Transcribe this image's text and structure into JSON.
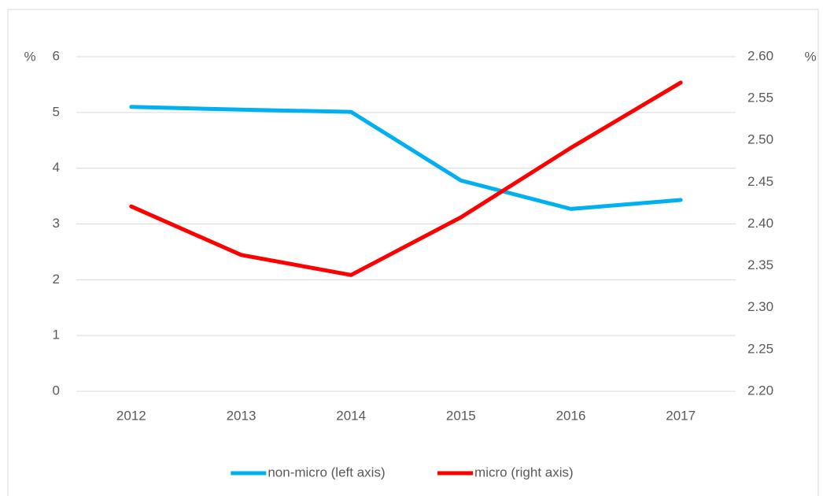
{
  "chart_data": {
    "type": "line",
    "categories": [
      "2012",
      "2013",
      "2014",
      "2015",
      "2016",
      "2017"
    ],
    "series": [
      {
        "name": "non-micro (left axis)",
        "color": "#00b0f0",
        "values": [
          5.1,
          5.05,
          5.01,
          3.78,
          3.27,
          3.43
        ]
      },
      {
        "name": "micro (right axis)",
        "color": "#ff0000",
        "axis": "y2",
        "values": [
          2.421,
          2.363,
          2.339,
          2.408,
          2.491,
          2.569
        ]
      }
    ],
    "y_label": "%",
    "y2_label": "%",
    "ylim": [
      0,
      6
    ],
    "yticks": [
      0,
      1,
      2,
      3,
      4,
      5,
      6
    ],
    "y2lim": [
      2.2,
      2.6
    ],
    "y2ticks": [
      {
        "value": 2.2,
        "label": "2.20"
      },
      {
        "value": 2.25,
        "label": "2.25"
      },
      {
        "value": 2.3,
        "label": "2.30"
      },
      {
        "value": 2.35,
        "label": "2.35"
      },
      {
        "value": 2.4,
        "label": "2.40"
      },
      {
        "value": 2.45,
        "label": "2.45"
      },
      {
        "value": 2.5,
        "label": "2.50"
      },
      {
        "value": 2.55,
        "label": "2.55"
      },
      {
        "value": 2.6,
        "label": "2.60"
      }
    ],
    "grid": true,
    "legend": "bottom"
  }
}
